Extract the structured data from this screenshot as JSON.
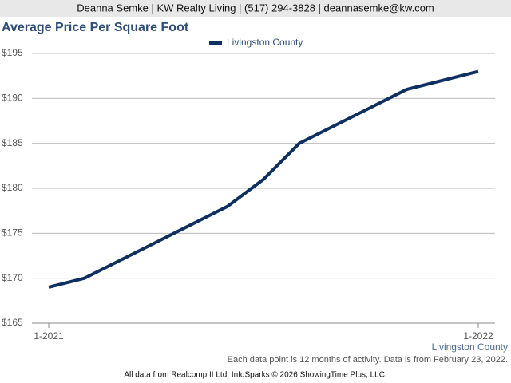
{
  "header": "Deanna Semke | KW Realty Living | (517) 294-3828 | deannasemke@kw.com",
  "chart_data": {
    "type": "line",
    "title": "Average Price Per Square Foot",
    "categories": [
      "1-2021",
      null,
      null,
      null,
      null,
      null,
      null,
      null,
      null,
      null,
      null,
      null,
      "1-2022"
    ],
    "series": [
      {
        "name": "Livingston County",
        "color": "#0e3060",
        "values": [
          169,
          170,
          172,
          174,
          176,
          178,
          181,
          185,
          187,
          189,
          191,
          192,
          193
        ]
      }
    ],
    "ylim": [
      165,
      195
    ],
    "yticks": [
      {
        "value": 165,
        "label": "$165"
      },
      {
        "value": 170,
        "label": "$170"
      },
      {
        "value": 175,
        "label": "$175"
      },
      {
        "value": 180,
        "label": "$180"
      },
      {
        "value": 185,
        "label": "$185"
      },
      {
        "value": 190,
        "label": "$190"
      },
      {
        "value": 195,
        "label": "$195"
      }
    ],
    "grid": true,
    "legend": "top",
    "xlabel": "Livingston County"
  },
  "footnote": "Each data point is 12 months of activity. Data is from February 23, 2022.",
  "credit": "All data from Realcomp II Ltd. InfoSparks © 2026 ShowingTime Plus, LLC."
}
